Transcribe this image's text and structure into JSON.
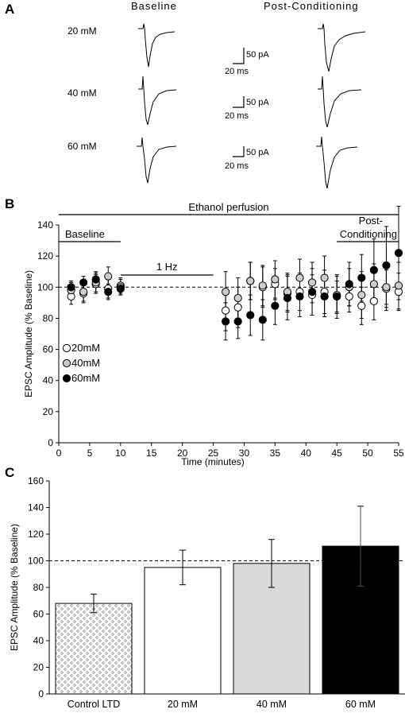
{
  "panels": {
    "a": {
      "letter": "A",
      "col_headers": [
        "Baseline",
        "Post-Conditioning"
      ],
      "rows": [
        {
          "label": "20 mM",
          "scale_current": "50 pA",
          "scale_time": "20 ms"
        },
        {
          "label": "40 mM",
          "scale_current": "50 pA",
          "scale_time": "20 ms"
        },
        {
          "label": "60 mM",
          "scale_current": "50 pA",
          "scale_time": "20 ms"
        }
      ]
    },
    "b": {
      "letter": "B"
    },
    "c": {
      "letter": "C"
    }
  },
  "chart_data": [
    {
      "type": "scatter",
      "panel": "B",
      "title": "",
      "xlabel": "Time (minutes)",
      "ylabel": "EPSC Amplitude (% Baseline)",
      "xlim": [
        0,
        55
      ],
      "ylim": [
        0,
        140
      ],
      "xticks": [
        0,
        5,
        10,
        15,
        20,
        25,
        30,
        35,
        40,
        45,
        50,
        55
      ],
      "yticks": [
        0,
        20,
        40,
        60,
        80,
        100,
        120,
        140
      ],
      "reference_line": 100,
      "annotations": [
        {
          "text": "Ethanol perfusion",
          "x_from": 0,
          "x_to": 55
        },
        {
          "text": "Baseline",
          "x_from": 0,
          "x_to": 10
        },
        {
          "text": "1 Hz",
          "x_from": 10,
          "x_to": 25
        },
        {
          "text": "Post-",
          "x_from": 45,
          "x_to": 55
        },
        {
          "text": "Conditioning",
          "x_from": 45,
          "x_to": 55
        }
      ],
      "legend_position": "left",
      "series": [
        {
          "name": "20mM",
          "fill": "#ffffff",
          "points": [
            [
              2,
              94
            ],
            [
              4,
              96
            ],
            [
              6,
              102
            ],
            [
              8,
              99
            ],
            [
              10,
              101
            ],
            [
              27,
              85
            ],
            [
              29,
              87
            ],
            [
              31,
              104
            ],
            [
              33,
              100
            ],
            [
              35,
              102
            ],
            [
              37,
              96
            ],
            [
              39,
              97
            ],
            [
              41,
              95
            ],
            [
              43,
              97
            ],
            [
              45,
              94
            ],
            [
              47,
              94
            ],
            [
              49,
              88
            ],
            [
              51,
              91
            ],
            [
              53,
              99
            ],
            [
              55,
              97
            ]
          ],
          "errors": [
            5,
            6,
            6,
            6,
            5,
            13,
            13,
            12,
            13,
            10,
            12,
            12,
            13,
            14,
            10,
            10,
            12,
            12,
            12,
            12
          ]
        },
        {
          "name": "40mM",
          "fill": "#cccccc",
          "points": [
            [
              2,
              98
            ],
            [
              4,
              97
            ],
            [
              6,
              103
            ],
            [
              8,
              107
            ],
            [
              10,
              100
            ],
            [
              27,
              97
            ],
            [
              29,
              93
            ],
            [
              31,
              104
            ],
            [
              33,
              101
            ],
            [
              35,
              105
            ],
            [
              37,
              97
            ],
            [
              39,
              106
            ],
            [
              41,
              103
            ],
            [
              43,
              106
            ],
            [
              45,
              95
            ],
            [
              47,
              100
            ],
            [
              49,
              95
            ],
            [
              51,
              102
            ],
            [
              53,
              100
            ],
            [
              55,
              101
            ]
          ],
          "errors": [
            5,
            6,
            6,
            6,
            5,
            13,
            13,
            12,
            13,
            12,
            12,
            12,
            13,
            14,
            12,
            12,
            15,
            13,
            15,
            15
          ]
        },
        {
          "name": "60mM",
          "fill": "#000000",
          "points": [
            [
              2,
              100
            ],
            [
              4,
              103
            ],
            [
              6,
              105
            ],
            [
              8,
              97
            ],
            [
              10,
              99
            ],
            [
              27,
              78
            ],
            [
              29,
              78
            ],
            [
              31,
              82
            ],
            [
              33,
              79
            ],
            [
              35,
              88
            ],
            [
              37,
              93
            ],
            [
              39,
              94
            ],
            [
              41,
              97
            ],
            [
              43,
              94
            ],
            [
              45,
              94
            ],
            [
              47,
              102
            ],
            [
              49,
              106
            ],
            [
              51,
              111
            ],
            [
              53,
              114
            ],
            [
              55,
              122
            ]
          ],
          "errors": [
            4,
            4,
            5,
            5,
            4,
            12,
            11,
            13,
            13,
            12,
            14,
            13,
            15,
            13,
            14,
            14,
            15,
            20,
            25,
            30
          ]
        }
      ]
    },
    {
      "type": "bar",
      "panel": "C",
      "title": "",
      "xlabel": "",
      "ylabel": "EPSC Amplitude (% Baseline)",
      "ylim": [
        0,
        160
      ],
      "yticks": [
        0,
        20,
        40,
        60,
        80,
        100,
        120,
        140,
        160
      ],
      "reference_line": 100,
      "categories": [
        "Control LTD",
        "20 mM",
        "40 mM",
        "60 mM"
      ],
      "values": [
        68,
        95,
        98,
        111
      ],
      "errors": [
        7,
        13,
        18,
        30
      ],
      "fills": [
        "dotted",
        "#ffffff",
        "#d9d9d9",
        "#000000"
      ]
    }
  ]
}
